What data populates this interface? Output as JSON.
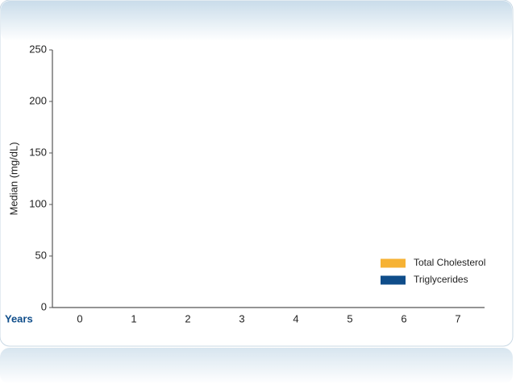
{
  "chart_data": {
    "type": "bar",
    "x_label": "Years",
    "y_label": "Median (mg/dL)",
    "categories": [
      "0",
      "1",
      "2",
      "3",
      "4",
      "5",
      "6",
      "7"
    ],
    "series": [
      {
        "name": "Total Cholesterol",
        "color": "#f6b234",
        "values": [
          null,
          null,
          null,
          null,
          null,
          null,
          null,
          null
        ]
      },
      {
        "name": "Triglycerides",
        "color": "#0f4d8a",
        "values": [
          null,
          null,
          null,
          null,
          null,
          null,
          null,
          null
        ]
      }
    ],
    "ylim": [
      0,
      250
    ],
    "yticks": [
      0,
      50,
      100,
      150,
      200,
      250
    ],
    "legend": "lower right",
    "grid": false
  }
}
